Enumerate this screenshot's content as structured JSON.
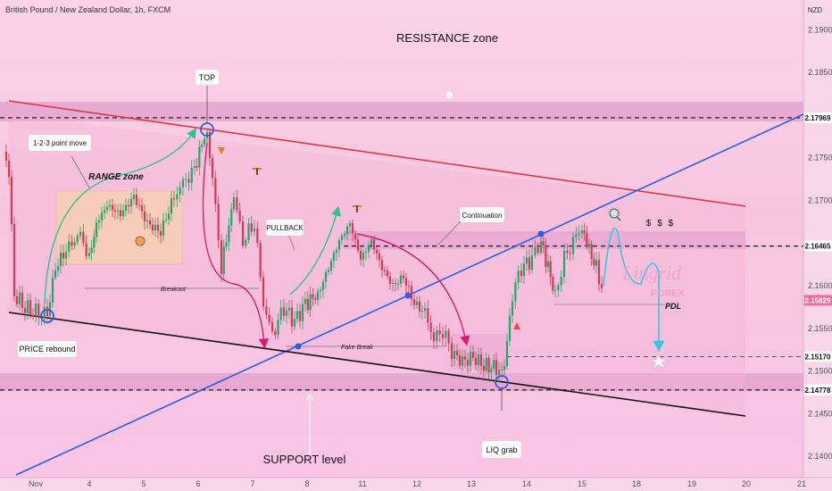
{
  "chart_data": {
    "type": "candlestick",
    "title": "British Pound / New Zealand Dollar, 1h, FXCM",
    "currency": "NZD",
    "x_ticks": [
      "Nov",
      "4",
      "5",
      "6",
      "7",
      "8",
      "11",
      "12",
      "13",
      "14",
      "15",
      "18",
      "19",
      "20",
      "21"
    ],
    "y_ticks": [
      2.19,
      2.185,
      2.175,
      2.17,
      2.16,
      2.155,
      2.15,
      2.145,
      2.14
    ],
    "ylim": [
      2.1375,
      2.1935
    ],
    "price_labels": {
      "resistance": "2.17969",
      "pdh": "2.16465",
      "current": "2.15829",
      "target": "2.15170",
      "support": "2.14778"
    },
    "levels": {
      "resistance": 2.17969,
      "pdh": 2.16465,
      "current": 2.15829,
      "target": 2.1517,
      "support": 2.14778
    },
    "annotations": {
      "resistance_zone": "RESISTANCE zone",
      "support_level": "SUPPORT level",
      "top": "TOP",
      "move": "1-2-3 point move",
      "range_zone": "RANGE zone",
      "breakout": "Breakout",
      "pullback": "PULLBACK",
      "continuation": "Continuation",
      "fake_break": "Fake Break",
      "price_rebound": "PRICE rebound",
      "liq_grab": "LIQ grab",
      "dollars": "$ $ $",
      "pdl": "PDL",
      "brand": "Lingrid",
      "brand_sub": "FOREX"
    },
    "colors": {
      "resistance_line": "#e0334c",
      "uptrend_line": "#2a5fe0",
      "support_line": "#111111",
      "bull": "#1fa86a",
      "bear": "#d43a55",
      "projection": "#39c5e0",
      "arrow_down": "#d91d6b",
      "arrow_up": "#2fc28a"
    }
  }
}
